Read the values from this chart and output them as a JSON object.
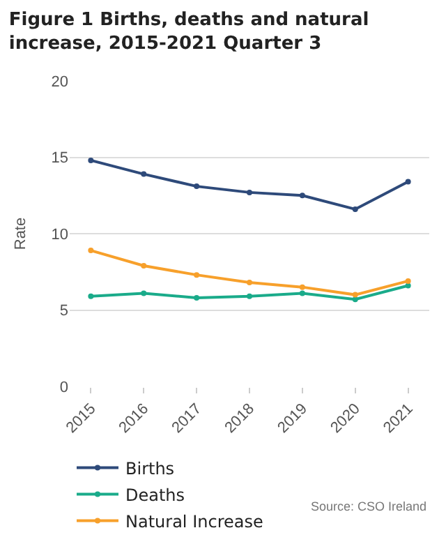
{
  "chart_data": {
    "type": "line",
    "title": "Figure 1 Births, deaths and natural increase, 2015-2021 Quarter 3",
    "ylabel": "Rate",
    "categories": [
      "2015",
      "2016",
      "2017",
      "2018",
      "2019",
      "2020",
      "2021"
    ],
    "series": [
      {
        "name": "Births",
        "color": "#2e4a7a",
        "values": [
          14.8,
          13.9,
          13.1,
          12.7,
          12.5,
          11.6,
          13.4
        ]
      },
      {
        "name": "Deaths",
        "color": "#1aab8a",
        "values": [
          5.9,
          6.1,
          5.8,
          5.9,
          6.1,
          5.7,
          6.6
        ]
      },
      {
        "name": "Natural Increase",
        "color": "#f7a02b",
        "values": [
          8.9,
          7.9,
          7.3,
          6.8,
          6.5,
          6.0,
          6.9
        ]
      }
    ],
    "ylim": [
      0,
      20
    ],
    "yticks": [
      0,
      5,
      10,
      15,
      20
    ],
    "grid": "y",
    "legend": "bottom",
    "marker": "circle",
    "line_style": "solid",
    "annotations": [
      "Source: CSO Ireland"
    ]
  }
}
